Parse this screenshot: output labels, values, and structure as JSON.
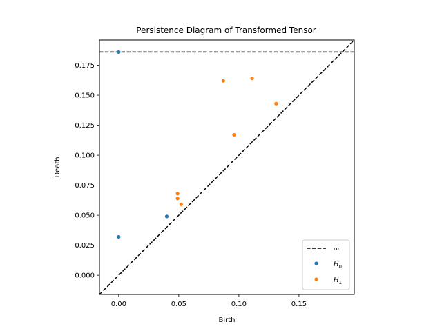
{
  "chart_data": {
    "type": "scatter",
    "title": "Persistence Diagram of Transformed Tensor",
    "xlabel": "Birth",
    "ylabel": "Death",
    "xlim": [
      -0.016,
      0.196
    ],
    "ylim": [
      -0.016,
      0.196
    ],
    "x_ticks": [
      0.0,
      0.05,
      0.1,
      0.15
    ],
    "x_tick_labels": [
      "0.00",
      "0.05",
      "0.10",
      "0.15"
    ],
    "y_ticks": [
      0.0,
      0.025,
      0.05,
      0.075,
      0.1,
      0.125,
      0.15,
      0.175
    ],
    "y_tick_labels": [
      "0.000",
      "0.025",
      "0.050",
      "0.075",
      "0.100",
      "0.125",
      "0.150",
      "0.175"
    ],
    "infinity_line_y": 0.186,
    "diagonal": true,
    "grid": false,
    "legend_position": "lower-right",
    "legend": [
      {
        "label": "∞",
        "kind": "dashed-line",
        "color": "#000000"
      },
      {
        "label_main": "H",
        "label_sub": "0",
        "kind": "marker",
        "color": "#1f77b4"
      },
      {
        "label_main": "H",
        "label_sub": "1",
        "kind": "marker",
        "color": "#ff7f0e"
      }
    ],
    "series": [
      {
        "name": "H0",
        "color": "#1f77b4",
        "points": [
          [
            0.0,
            0.186
          ],
          [
            0.0,
            0.032
          ],
          [
            0.04,
            0.049
          ]
        ]
      },
      {
        "name": "H1",
        "color": "#ff7f0e",
        "points": [
          [
            0.087,
            0.162
          ],
          [
            0.111,
            0.164
          ],
          [
            0.131,
            0.143
          ],
          [
            0.096,
            0.117
          ],
          [
            0.049,
            0.068
          ],
          [
            0.049,
            0.064
          ],
          [
            0.052,
            0.059
          ]
        ]
      }
    ]
  }
}
